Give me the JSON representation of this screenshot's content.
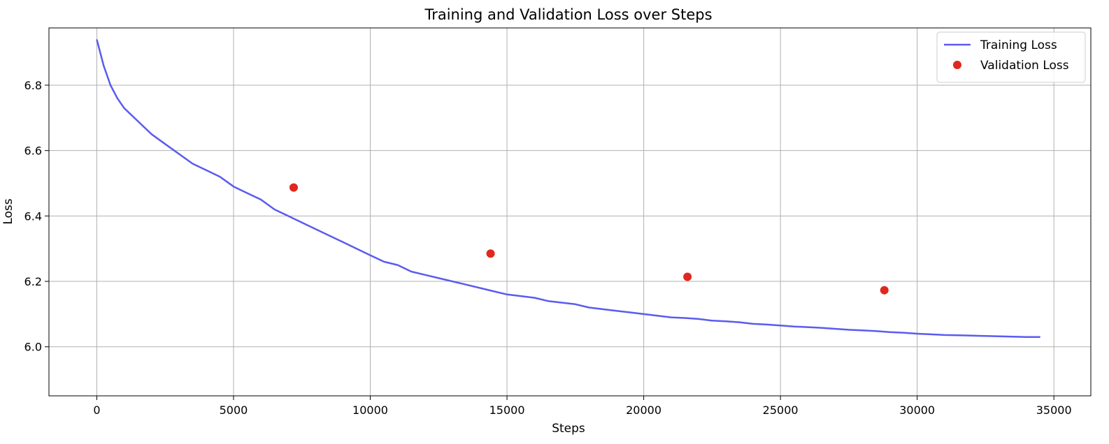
{
  "chart_data": {
    "type": "line",
    "title": "Training and Validation Loss over Steps",
    "xlabel": "Steps",
    "ylabel": "Loss",
    "xlim": [
      -1750,
      36350
    ],
    "ylim": [
      5.85,
      6.975
    ],
    "xticks": [
      0,
      5000,
      10000,
      15000,
      20000,
      25000,
      30000,
      35000
    ],
    "yticks": [
      6.0,
      6.2,
      6.4,
      6.6,
      6.8
    ],
    "xtick_labels": [
      "0",
      "5000",
      "10000",
      "15000",
      "20000",
      "25000",
      "30000",
      "35000"
    ],
    "ytick_labels": [
      "6.0",
      "6.2",
      "6.4",
      "6.6",
      "6.8"
    ],
    "grid": true,
    "legend_position": "top-right",
    "series": [
      {
        "name": "Training Loss",
        "kind": "line",
        "color": "#5b5bf0",
        "x": [
          0,
          250,
          500,
          750,
          1000,
          1500,
          2000,
          2500,
          3000,
          3500,
          4000,
          4500,
          5000,
          5500,
          6000,
          6500,
          7000,
          7500,
          8000,
          8500,
          9000,
          9500,
          10000,
          10500,
          11000,
          11500,
          12000,
          12500,
          13000,
          13500,
          14000,
          14500,
          15000,
          15500,
          16000,
          16500,
          17000,
          17500,
          18000,
          18500,
          19000,
          19500,
          20000,
          20500,
          21000,
          21500,
          22000,
          22500,
          23000,
          23500,
          24000,
          24500,
          25000,
          25500,
          26000,
          26500,
          27000,
          27500,
          28000,
          28500,
          29000,
          29500,
          30000,
          30500,
          31000,
          31500,
          32000,
          32500,
          33000,
          33500,
          34000,
          34500
        ],
        "y": [
          6.94,
          6.86,
          6.8,
          6.76,
          6.73,
          6.69,
          6.65,
          6.62,
          6.59,
          6.56,
          6.54,
          6.52,
          6.49,
          6.47,
          6.45,
          6.42,
          6.4,
          6.38,
          6.36,
          6.34,
          6.32,
          6.3,
          6.28,
          6.26,
          6.25,
          6.23,
          6.22,
          6.21,
          6.2,
          6.19,
          6.18,
          6.17,
          6.16,
          6.155,
          6.15,
          6.14,
          6.135,
          6.13,
          6.12,
          6.115,
          6.11,
          6.105,
          6.1,
          6.095,
          6.09,
          6.088,
          6.085,
          6.08,
          6.078,
          6.075,
          6.07,
          6.068,
          6.065,
          6.062,
          6.06,
          6.058,
          6.055,
          6.052,
          6.05,
          6.048,
          6.045,
          6.043,
          6.04,
          6.038,
          6.036,
          6.035,
          6.034,
          6.033,
          6.032,
          6.031,
          6.03,
          6.03
        ]
      },
      {
        "name": "Validation Loss",
        "kind": "scatter",
        "color": "#e0281e",
        "x": [
          7200,
          14400,
          21600,
          28800
        ],
        "y": [
          6.487,
          6.285,
          6.214,
          6.173
        ]
      }
    ]
  }
}
